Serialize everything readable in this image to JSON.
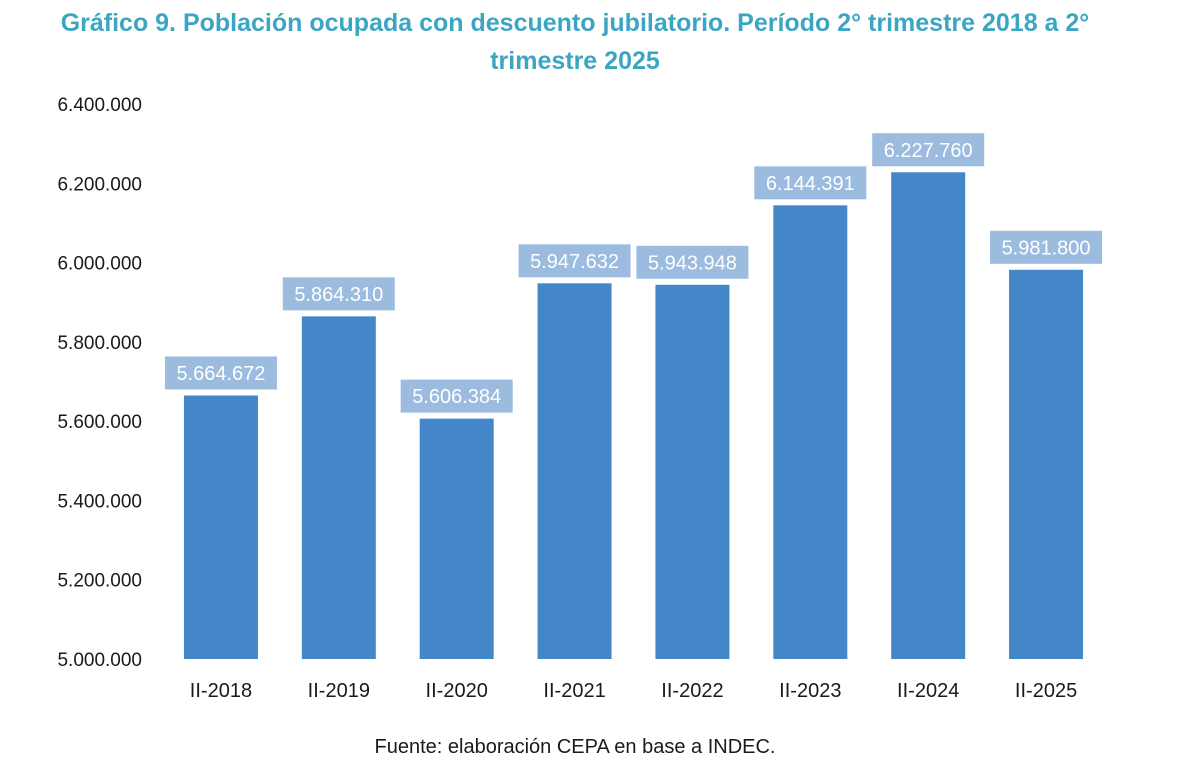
{
  "chart_data": {
    "type": "bar",
    "title": "Gráfico 9. Población ocupada con descuento jubilatorio. Período 2° trimestre 2018 a 2° trimestre 2025",
    "categories": [
      "II-2018",
      "II-2019",
      "II-2020",
      "II-2021",
      "II-2022",
      "II-2023",
      "II-2024",
      "II-2025"
    ],
    "values": [
      5664672,
      5864310,
      5606384,
      5947632,
      5943948,
      6144391,
      6227760,
      5981800
    ],
    "data_labels": [
      "5.664.672",
      "5.864.310",
      "5.606.384",
      "5.947.632",
      "5.943.948",
      "6.144.391",
      "6.227.760",
      "5.981.800"
    ],
    "ylim": [
      5000000,
      6400000
    ],
    "yticks": [
      5000000,
      5200000,
      5400000,
      5600000,
      5800000,
      6000000,
      6200000,
      6400000
    ],
    "ytick_labels": [
      "5.000.000",
      "5.200.000",
      "5.400.000",
      "5.600.000",
      "5.800.000",
      "6.000.000",
      "6.200.000",
      "6.400.000"
    ],
    "xlabel": "",
    "ylabel": "",
    "grid": false,
    "legend": "none",
    "source": "Fuente: elaboración CEPA en base a INDEC.",
    "colors": {
      "title": "#3aa6c2",
      "bar": "#4387c8",
      "label_box": "#9bbbdf",
      "label_text": "#ffffff",
      "axis_text": "#1a1a1a"
    }
  }
}
